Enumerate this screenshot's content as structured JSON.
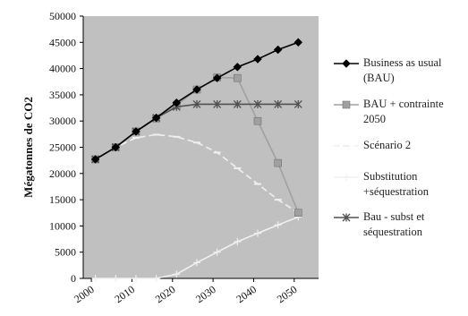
{
  "chart_data": {
    "type": "line",
    "ylabel": "Mégatonnes de CO2",
    "xlabel": "",
    "xlim": [
      1998,
      2056
    ],
    "ylim": [
      0,
      50000
    ],
    "x_ticks": [
      2000,
      2010,
      2020,
      2030,
      2040,
      2050
    ],
    "y_ticks": [
      0,
      5000,
      10000,
      15000,
      20000,
      25000,
      30000,
      35000,
      40000,
      45000,
      50000
    ],
    "plot_background": "#c0c0c0",
    "legend_position": "right",
    "series": [
      {
        "name": "Business as usual (BAU)",
        "color": "#000000",
        "marker": "diamond",
        "dash": "solid",
        "x": [
          2001,
          2006,
          2011,
          2016,
          2021,
          2026,
          2031,
          2036,
          2041,
          2046,
          2051
        ],
        "values": [
          22700,
          25000,
          28000,
          30600,
          33500,
          36000,
          38200,
          40300,
          41800,
          43600,
          45000
        ]
      },
      {
        "name": "BAU + contrainte 2050",
        "color": "#a0a0a0",
        "marker": "square",
        "dash": "solid",
        "x": [
          2001,
          2006,
          2011,
          2016,
          2021,
          2026,
          2031,
          2036,
          2041,
          2046,
          2051
        ],
        "values": [
          22700,
          25000,
          28000,
          30500,
          33000,
          36000,
          38300,
          38200,
          30000,
          22000,
          12500
        ]
      },
      {
        "name": "Scénario 2",
        "color": "#f0f0f0",
        "marker": "dash",
        "dash": "dashed",
        "x": [
          2001,
          2006,
          2011,
          2016,
          2021,
          2026,
          2031,
          2036,
          2041,
          2046,
          2051
        ],
        "values": [
          22700,
          25000,
          26800,
          27400,
          27000,
          25900,
          24000,
          21000,
          18000,
          15000,
          12500
        ]
      },
      {
        "name": "Substitution +séquestration",
        "color": "#f0f0f0",
        "marker": "plus",
        "dash": "solid",
        "x": [
          2001,
          2006,
          2011,
          2016,
          2021,
          2026,
          2031,
          2036,
          2041,
          2046,
          2051
        ],
        "values": [
          0,
          0,
          0,
          0,
          800,
          3000,
          5000,
          7000,
          8600,
          10200,
          11700
        ]
      },
      {
        "name": "Bau - subst et séquestration",
        "color": "#505050",
        "marker": "star",
        "dash": "solid",
        "x": [
          2001,
          2006,
          2011,
          2016,
          2021,
          2026,
          2031,
          2036,
          2041,
          2046,
          2051
        ],
        "values": [
          22700,
          25000,
          28000,
          30600,
          32700,
          33200,
          33200,
          33200,
          33200,
          33200,
          33200
        ]
      }
    ]
  }
}
